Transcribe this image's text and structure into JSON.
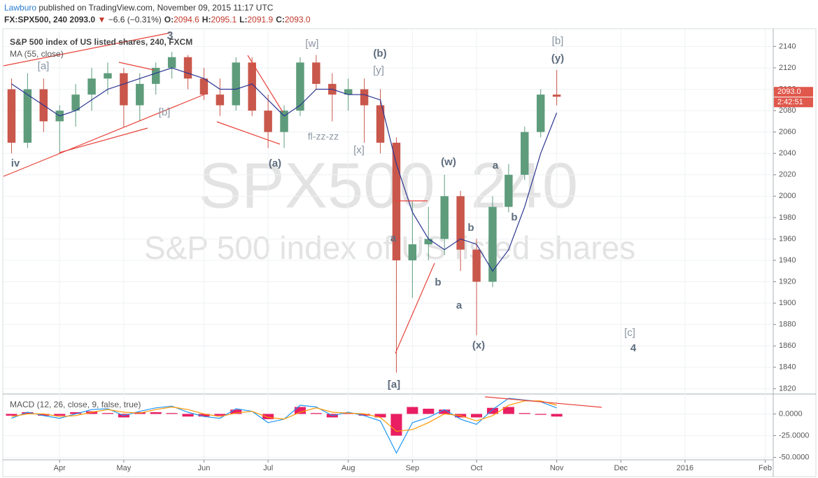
{
  "header": {
    "author": "Lawburo",
    "published": "published on TradingView.com, November 09, 2015 11:17 UTC",
    "symbol": "FX:SPX500, 240",
    "last": "2093.0",
    "arrow": "▼",
    "change": "−6.6 (−0.31%)",
    "ohlc": [
      {
        "label": "O:",
        "value": "2094.6"
      },
      {
        "label": "H:",
        "value": "2095.1"
      },
      {
        "label": "L:",
        "value": "2091.9"
      },
      {
        "label": "C:",
        "value": "2093.0"
      }
    ]
  },
  "chart_data": [
    {
      "type": "candlestick",
      "title": "S&P 500 index of US listed shares, 240, FXCM",
      "watermark_symbol": "SPX500, 240",
      "watermark_description": "S&P 500 index of US listed shares",
      "categories": [
        null,
        null,
        null,
        "Apr",
        null,
        null,
        null,
        "May",
        null,
        null,
        null,
        null,
        "Jun",
        null,
        null,
        null,
        "Jul",
        null,
        null,
        null,
        null,
        "Aug",
        null,
        null,
        null,
        "Sep",
        null,
        null,
        null,
        "Oct",
        null,
        null,
        null,
        null,
        "Nov",
        null,
        null,
        null,
        "Dec",
        null,
        null,
        null,
        "2016",
        null,
        null,
        null,
        null,
        "Feb"
      ],
      "open": [
        2100,
        2050,
        2100,
        2070,
        2080,
        2095,
        2110,
        2115,
        2085,
        2105,
        2120,
        2130,
        2110,
        2095,
        2085,
        2125,
        2080,
        2060,
        2080,
        2125,
        2105,
        2095,
        2100,
        2085,
        2050,
        1940,
        1955,
        1960,
        2000,
        1950,
        1920,
        1990,
        2020,
        2060,
        2095,
        null,
        null,
        null,
        null,
        null,
        null,
        null,
        null,
        null,
        null,
        null,
        null,
        null
      ],
      "high": [
        2110,
        2115,
        2110,
        2085,
        2105,
        2120,
        2125,
        2120,
        2115,
        2125,
        2135,
        2132,
        2120,
        2110,
        2130,
        2130,
        2095,
        2085,
        2130,
        2132,
        2115,
        2110,
        2110,
        2100,
        2055,
        1995,
        1990,
        2020,
        2005,
        1960,
        2000,
        2030,
        2065,
        2100,
        2118,
        null,
        null,
        null,
        null,
        null,
        null,
        null,
        null,
        null,
        null,
        null,
        null,
        null
      ],
      "low": [
        2040,
        2045,
        2060,
        2040,
        2065,
        2080,
        2095,
        2065,
        2070,
        2095,
        2110,
        2100,
        2090,
        2075,
        2080,
        2075,
        2045,
        2045,
        2075,
        2100,
        2070,
        2080,
        2050,
        2040,
        1835,
        1905,
        1940,
        1945,
        1930,
        1870,
        1915,
        1985,
        2015,
        2055,
        2085,
        null,
        null,
        null,
        null,
        null,
        null,
        null,
        null,
        null,
        null,
        null,
        null,
        null
      ],
      "close": [
        2050,
        2100,
        2070,
        2080,
        2095,
        2110,
        2115,
        2085,
        2105,
        2120,
        2130,
        2110,
        2095,
        2085,
        2125,
        2080,
        2060,
        2080,
        2125,
        2105,
        2095,
        2100,
        2085,
        2050,
        1940,
        1955,
        1960,
        2000,
        1950,
        1920,
        1990,
        2020,
        2060,
        2095,
        2093,
        null,
        null,
        null,
        null,
        null,
        null,
        null,
        null,
        null,
        null,
        null,
        null,
        null
      ],
      "up_color": "#5e9c7c",
      "down_color": "#c9574b",
      "series": [
        {
          "name": "MA (55, close)",
          "color": "#2b3590",
          "values": [
            2105,
            2095,
            2085,
            2075,
            2080,
            2090,
            2100,
            2105,
            2110,
            2115,
            2120,
            2115,
            2110,
            2100,
            2100,
            2105,
            2090,
            2075,
            2085,
            2100,
            2100,
            2095,
            2095,
            2090,
            2030,
            1985,
            1960,
            1950,
            1960,
            1955,
            1930,
            1950,
            1990,
            2040,
            2078,
            null,
            null,
            null,
            null,
            null,
            null,
            null,
            null,
            null,
            null,
            null,
            null,
            null
          ]
        }
      ],
      "ylim": [
        1815,
        2154
      ],
      "yticks": [
        1820,
        1840,
        1860,
        1880,
        1900,
        1920,
        1940,
        1960,
        1980,
        2000,
        2020,
        2040,
        2060,
        2080,
        2100,
        2120,
        2140
      ],
      "ytick_format": "{\"value\":...}",
      "grid": true,
      "price_label": "2093.0",
      "countdown": "2:42:51",
      "annotations": [
        {
          "text": "3",
          "color": "#5d6c7e"
        },
        {
          "text": "[a]",
          "color": "#8a96a3"
        },
        {
          "text": "iv",
          "color": "#5d6c7e"
        },
        {
          "text": "[b]",
          "color": "#8a96a3"
        },
        {
          "text": "(a)",
          "color": "#5d6c7e"
        },
        {
          "text": "[w]",
          "color": "#8a96a3"
        },
        {
          "text": "fl-zz-zz",
          "color": "#8a96a3"
        },
        {
          "text": "(b)",
          "color": "#5d6c7e"
        },
        {
          "text": "[y]",
          "color": "#8a96a3"
        },
        {
          "text": "[x]",
          "color": "#8a96a3"
        },
        {
          "text": "(w)",
          "color": "#5d6c7e"
        },
        {
          "text": "a",
          "color": "#5d6c7e"
        },
        {
          "text": "b",
          "color": "#5d6c7e"
        },
        {
          "text": "b",
          "color": "#5d6c7e"
        },
        {
          "text": "a",
          "color": "#5d6c7e"
        },
        {
          "text": "b",
          "color": "#5d6c7e"
        },
        {
          "text": "a",
          "color": "#5d6c7e"
        },
        {
          "text": "(x)",
          "color": "#5d6c7e"
        },
        {
          "text": "[a]",
          "color": "#5d6c7e"
        },
        {
          "text": "[b]",
          "color": "#8a96a3"
        },
        {
          "text": "(y)",
          "color": "#5d6c7e"
        },
        {
          "text": "[c]",
          "color": "#8a96a3"
        },
        {
          "text": "4",
          "color": "#5d6c7e"
        }
      ]
    },
    {
      "type": "macd",
      "title": "MACD (12, 26, close, 9, false, true)",
      "macd": [
        -5,
        2,
        -2,
        -5,
        0,
        5,
        6,
        -2,
        3,
        7,
        9,
        2,
        -3,
        -5,
        6,
        3,
        -10,
        -6,
        10,
        8,
        -2,
        2,
        -2,
        -8,
        -45,
        -10,
        -4,
        5,
        -6,
        -12,
        5,
        18,
        16,
        14,
        7,
        null,
        null,
        null,
        null,
        null,
        null,
        null,
        null,
        null,
        null,
        null,
        null,
        null
      ],
      "signal": [
        -3,
        0,
        0,
        -3,
        -2,
        2,
        5,
        2,
        1,
        5,
        8,
        5,
        0,
        -3,
        1,
        3,
        -4,
        -6,
        2,
        7,
        2,
        1,
        0,
        -4,
        -20,
        -18,
        -10,
        0,
        -2,
        -8,
        -2,
        10,
        15,
        15,
        10,
        null,
        null,
        null,
        null,
        null,
        null,
        null,
        null,
        null,
        null,
        null,
        null,
        null
      ],
      "histogram": [
        -2,
        2,
        -2,
        -2,
        2,
        3,
        1,
        -4,
        2,
        2,
        1,
        -3,
        -3,
        -2,
        5,
        0,
        -6,
        0,
        8,
        1,
        -4,
        1,
        -2,
        -4,
        -25,
        8,
        6,
        5,
        -4,
        -4,
        7,
        8,
        1,
        -1,
        -3,
        null,
        null,
        null,
        null,
        null,
        null,
        null,
        null,
        null,
        null,
        null,
        null,
        null
      ],
      "macd_color": "#2196f3",
      "signal_color": "#ff9800",
      "histogram_color": "#e91e63",
      "ylim": [
        -52,
        20.5
      ],
      "yticks": [
        {
          "value": 0,
          "label": "0.0000"
        },
        {
          "value": -25,
          "label": "-25.0000"
        },
        {
          "value": -50,
          "label": "-50.0000"
        }
      ],
      "grid": true
    }
  ]
}
